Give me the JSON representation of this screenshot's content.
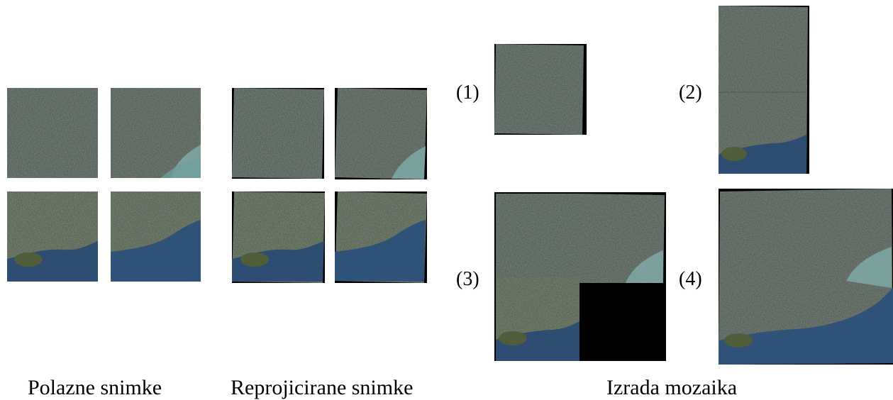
{
  "captions": {
    "original": "Polazne snimke",
    "reprojected": "Reprojicirane snimke",
    "mosaic": "Izrada mozaika"
  },
  "step_labels": [
    "(1)",
    "(2)",
    "(3)",
    "(4)"
  ],
  "colors": {
    "land": "#3e4f47",
    "land_green": "#4a5c3a",
    "sea": "#2d4d73",
    "estuary": "#6e9ea0",
    "island": "#4b5a3a",
    "background": "#000000"
  }
}
